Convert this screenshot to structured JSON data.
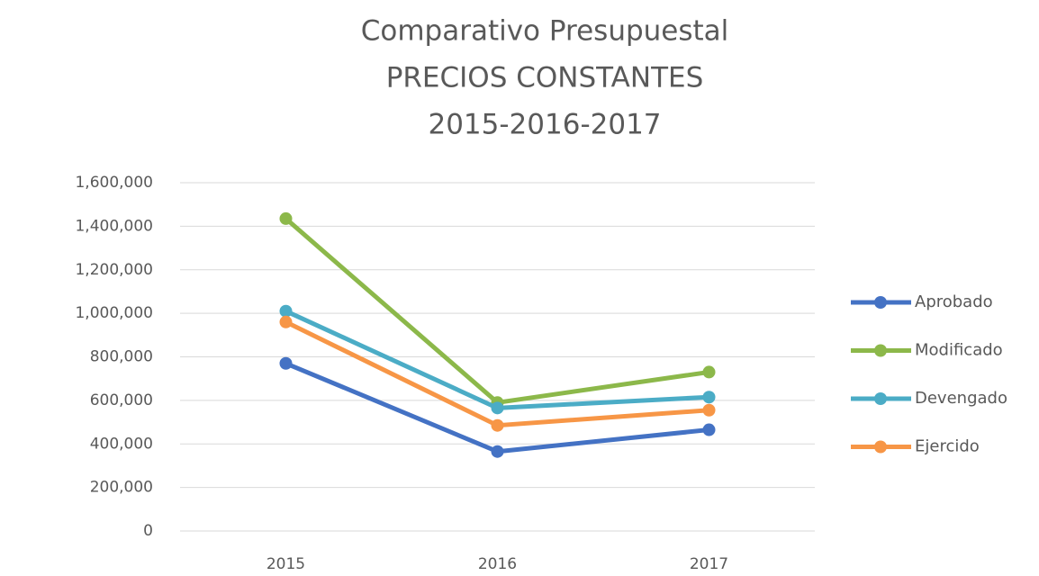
{
  "chart_data": {
    "type": "line",
    "title": [
      "Comparativo Presupuestal",
      "PRECIOS CONSTANTES",
      "2015-2016-2017"
    ],
    "categories": [
      "2015",
      "2016",
      "2017"
    ],
    "series": [
      {
        "name": "Aprobado",
        "color": "#4472c4",
        "values": [
          770000,
          365000,
          465000
        ]
      },
      {
        "name": "Modificado",
        "color": "#8cb84a",
        "values": [
          1435000,
          590000,
          730000
        ]
      },
      {
        "name": "Devengado",
        "color": "#4bacc6",
        "values": [
          1010000,
          565000,
          615000
        ]
      },
      {
        "name": "Ejercido",
        "color": "#f79646",
        "values": [
          960000,
          485000,
          555000
        ]
      }
    ],
    "ylim": [
      0,
      1600000
    ],
    "yticks": [
      0,
      {
        "value": 200000,
        "label": "200,000"
      },
      {
        "value": 400000,
        "label": "400,000"
      },
      {
        "value": 600000,
        "label": "600,000"
      },
      {
        "value": 800000,
        "label": "800,000"
      },
      {
        "value": 1000000,
        "label": "1,000,000"
      },
      {
        "value": 1200000,
        "label": "1,200,000"
      },
      {
        "value": 1400000,
        "label": "1,400,000"
      },
      {
        "value": 1600000,
        "label": "1,600,000"
      }
    ],
    "grid": true,
    "legend": "right"
  }
}
